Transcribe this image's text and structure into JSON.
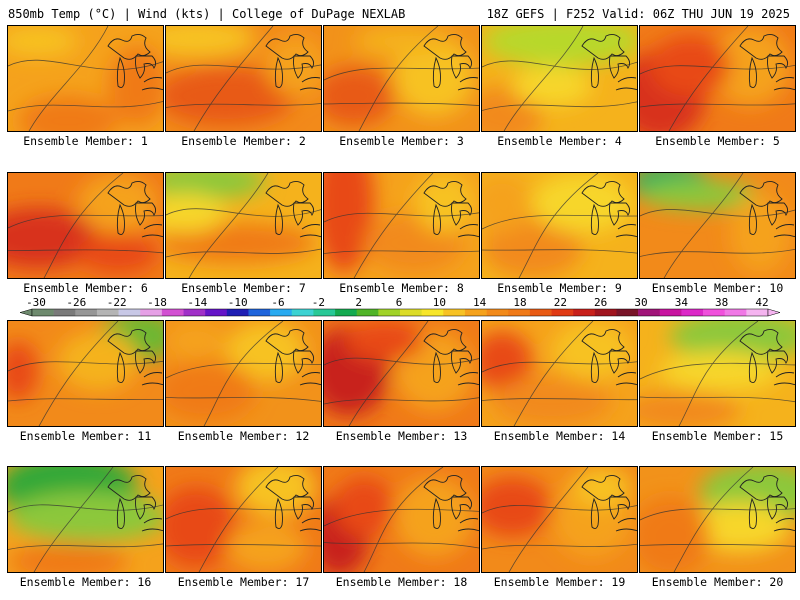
{
  "header": {
    "left": "850mb Temp (°C) | Wind (kts) | College of DuPage NEXLAB",
    "right": "18Z GEFS | F252 Valid: 06Z THU JUN 19 2025"
  },
  "panels": [
    {
      "label": "Ensemble Member: 1",
      "base": "#f5a21c",
      "blobs": [
        [
          "#f07a18",
          60,
          95,
          50,
          25
        ],
        [
          "#f7c224",
          30,
          15,
          40,
          15
        ],
        [
          "#f07a18",
          130,
          60,
          30,
          40
        ]
      ]
    },
    {
      "label": "Ensemble Member: 2",
      "base": "#f28a1a",
      "blobs": [
        [
          "#f7c224",
          30,
          12,
          60,
          20
        ],
        [
          "#e85a14",
          60,
          70,
          70,
          30
        ],
        [
          "#f5a21c",
          130,
          40,
          30,
          30
        ]
      ]
    },
    {
      "label": "Ensemble Member: 3",
      "base": "#f2921a",
      "blobs": [
        [
          "#f7c224",
          110,
          50,
          40,
          40
        ],
        [
          "#e85a14",
          30,
          70,
          40,
          30
        ],
        [
          "#f5b21c",
          80,
          15,
          50,
          15
        ]
      ]
    },
    {
      "label": "Ensemble Member: 4",
      "base": "#f5b21c",
      "blobs": [
        [
          "#b8d82a",
          80,
          15,
          80,
          25
        ],
        [
          "#f28a1a",
          20,
          90,
          40,
          30
        ],
        [
          "#f7d62a",
          70,
          60,
          40,
          20
        ]
      ]
    },
    {
      "label": "Ensemble Member: 5",
      "base": "#f07a18",
      "blobs": [
        [
          "#d8301a",
          20,
          70,
          45,
          45
        ],
        [
          "#f5a21c",
          110,
          40,
          40,
          40
        ],
        [
          "#e84a16",
          50,
          40,
          40,
          30
        ]
      ]
    },
    {
      "label": "Ensemble Member: 6",
      "base": "#f07a18",
      "blobs": [
        [
          "#d8301a",
          30,
          65,
          60,
          30
        ],
        [
          "#f5a21c",
          110,
          30,
          40,
          30
        ],
        [
          "#e84a16",
          110,
          80,
          40,
          20
        ]
      ]
    },
    {
      "label": "Ensemble Member: 7",
      "base": "#f5b21c",
      "blobs": [
        [
          "#8cc83a",
          40,
          8,
          60,
          18
        ],
        [
          "#f07a18",
          70,
          70,
          80,
          20
        ],
        [
          "#f7d62a",
          20,
          40,
          40,
          20
        ]
      ]
    },
    {
      "label": "Ensemble Member: 8",
      "base": "#f5a21c",
      "blobs": [
        [
          "#e84a16",
          20,
          30,
          30,
          70
        ],
        [
          "#f28a1a",
          90,
          70,
          50,
          30
        ],
        [
          "#f7c224",
          120,
          30,
          30,
          30
        ]
      ]
    },
    {
      "label": "Ensemble Member: 9",
      "base": "#f5b21c",
      "blobs": [
        [
          "#f28a1a",
          50,
          75,
          50,
          30
        ],
        [
          "#f7d62a",
          100,
          30,
          50,
          30
        ],
        [
          "#f5a21c",
          20,
          30,
          30,
          30
        ]
      ]
    },
    {
      "label": "Ensemble Member: 10",
      "base": "#f28a1a",
      "blobs": [
        [
          "#20b060",
          30,
          10,
          40,
          20
        ],
        [
          "#8cc83a",
          60,
          22,
          60,
          15
        ],
        [
          "#f5a21c",
          120,
          60,
          30,
          40
        ]
      ]
    },
    {
      "label": "Ensemble Member: 11",
      "base": "#f28a1a",
      "blobs": [
        [
          "#6cb830",
          130,
          15,
          40,
          25
        ],
        [
          "#f5b21c",
          90,
          40,
          40,
          30
        ],
        [
          "#e84a16",
          10,
          50,
          20,
          30
        ]
      ]
    },
    {
      "label": "Ensemble Member: 12",
      "base": "#f2921a",
      "blobs": [
        [
          "#f7c224",
          100,
          30,
          40,
          30
        ],
        [
          "#f07a18",
          40,
          70,
          50,
          30
        ],
        [
          "#f5a21c",
          30,
          20,
          30,
          20
        ]
      ]
    },
    {
      "label": "Ensemble Member: 13",
      "base": "#f07a18",
      "blobs": [
        [
          "#c8201a",
          25,
          50,
          40,
          45
        ],
        [
          "#f5a21c",
          110,
          50,
          40,
          40
        ],
        [
          "#e84a16",
          60,
          20,
          40,
          20
        ]
      ]
    },
    {
      "label": "Ensemble Member: 14",
      "base": "#f5a21c",
      "blobs": [
        [
          "#e84a16",
          20,
          40,
          30,
          30
        ],
        [
          "#f28a1a",
          70,
          80,
          60,
          25
        ],
        [
          "#f7c224",
          110,
          30,
          40,
          30
        ]
      ]
    },
    {
      "label": "Ensemble Member: 15",
      "base": "#f5b21c",
      "blobs": [
        [
          "#8cc83a",
          100,
          15,
          70,
          25
        ],
        [
          "#f7d62a",
          80,
          50,
          60,
          20
        ],
        [
          "#f28a1a",
          40,
          90,
          60,
          20
        ]
      ]
    },
    {
      "label": "Ensemble Member: 16",
      "base": "#f5a21c",
      "blobs": [
        [
          "#30a838",
          60,
          20,
          70,
          35
        ],
        [
          "#8cc83a",
          80,
          50,
          80,
          25
        ],
        [
          "#f07a18",
          60,
          95,
          60,
          20
        ]
      ]
    },
    {
      "label": "Ensemble Member: 17",
      "base": "#f07a18",
      "blobs": [
        [
          "#f7c224",
          110,
          20,
          40,
          30
        ],
        [
          "#e84a16",
          30,
          60,
          40,
          40
        ],
        [
          "#f5a21c",
          100,
          80,
          40,
          25
        ]
      ]
    },
    {
      "label": "Ensemble Member: 18",
      "base": "#f07a18",
      "blobs": [
        [
          "#c8201a",
          15,
          70,
          30,
          40
        ],
        [
          "#f5a21c",
          110,
          50,
          40,
          40
        ],
        [
          "#e84a16",
          40,
          40,
          30,
          30
        ]
      ]
    },
    {
      "label": "Ensemble Member: 19",
      "base": "#f28a1a",
      "blobs": [
        [
          "#e84a16",
          30,
          40,
          40,
          30
        ],
        [
          "#f5a21c",
          110,
          50,
          40,
          40
        ],
        [
          "#f7c224",
          120,
          20,
          30,
          20
        ]
      ]
    },
    {
      "label": "Ensemble Member: 20",
      "base": "#f2921a",
      "blobs": [
        [
          "#8cc83a",
          120,
          25,
          60,
          30
        ],
        [
          "#f7d62a",
          100,
          60,
          50,
          25
        ],
        [
          "#f07a18",
          30,
          70,
          40,
          40
        ]
      ]
    }
  ],
  "colorbar": {
    "ticks": [
      "-30",
      "-26",
      "-22",
      "-18",
      "-14",
      "-10",
      "-6",
      "-2",
      "2",
      "6",
      "10",
      "14",
      "18",
      "22",
      "26",
      "30",
      "34",
      "38",
      "42"
    ],
    "colors": [
      "#6e8a6e",
      "#7a7a7a",
      "#969696",
      "#b4b4b4",
      "#c8c8e6",
      "#e6a0e6",
      "#d250d2",
      "#a030c8",
      "#6414c8",
      "#1e1eb4",
      "#1e64dc",
      "#28aaf0",
      "#3cd2d2",
      "#28c896",
      "#14aa50",
      "#50b428",
      "#a0d228",
      "#dcdc28",
      "#f7e62a",
      "#f7c224",
      "#f5a21c",
      "#f28a1a",
      "#f07a18",
      "#e85a14",
      "#e03a14",
      "#c8201a",
      "#a0141e",
      "#781428",
      "#a01478",
      "#c814a0",
      "#dc28c8",
      "#f050dc",
      "#f078e6",
      "#f5b4f0"
    ]
  }
}
